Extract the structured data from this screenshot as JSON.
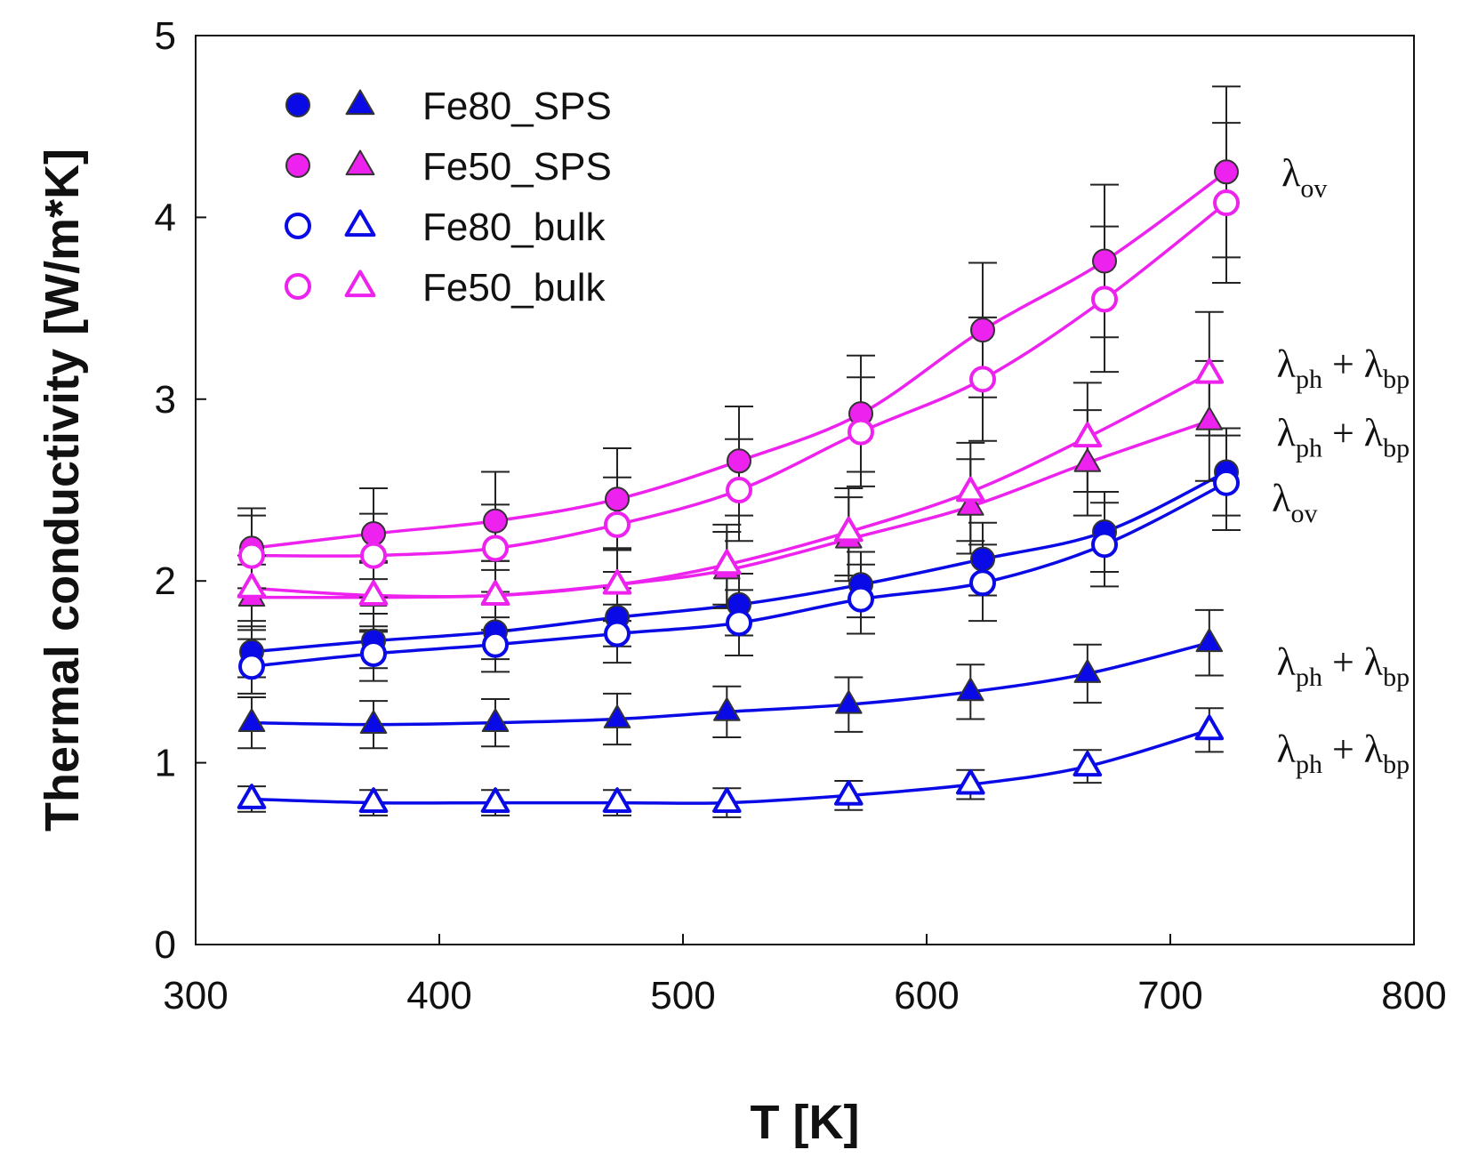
{
  "chart_data": {
    "type": "scatter",
    "title": "",
    "xlabel": "T [K]",
    "ylabel": "Thermal conductivity [W/m*K]",
    "xlim": [
      300,
      800
    ],
    "ylim": [
      0,
      5
    ],
    "x_ticks": [
      "300",
      "400",
      "500",
      "600",
      "700",
      "800"
    ],
    "y_ticks": [
      "0",
      "1",
      "2",
      "3",
      "4",
      "5"
    ],
    "grid": false,
    "legend_position": "top-left",
    "colors": {
      "blue": "#0a0ae6",
      "magenta": "#ee22ee",
      "errorbar": "#222222"
    },
    "legend": [
      {
        "label": "Fe80_SPS",
        "color": "#0a0ae6",
        "filled": true
      },
      {
        "label": "Fe50_SPS",
        "color": "#ee22ee",
        "filled": true
      },
      {
        "label": "Fe80_bulk",
        "color": "#0a0ae6",
        "filled": false
      },
      {
        "label": "Fe50_bulk",
        "color": "#ee22ee",
        "filled": false
      }
    ],
    "series": [
      {
        "name": "Fe80_SPS λov",
        "marker": "circle",
        "filled": true,
        "color": "#0a0ae6",
        "x": [
          323,
          373,
          423,
          473,
          523,
          573,
          623,
          673,
          723
        ],
        "y": [
          1.61,
          1.67,
          1.72,
          1.8,
          1.87,
          1.98,
          2.12,
          2.27,
          2.6
        ],
        "err": [
          0.14,
          0.15,
          0.15,
          0.16,
          0.17,
          0.18,
          0.2,
          0.22,
          0.24
        ]
      },
      {
        "name": "Fe80_SPS λph+λbp",
        "marker": "triangle",
        "filled": true,
        "color": "#0a0ae6",
        "x": [
          323,
          373,
          423,
          473,
          518,
          568,
          618,
          666,
          716
        ],
        "y": [
          1.22,
          1.21,
          1.22,
          1.24,
          1.28,
          1.32,
          1.39,
          1.49,
          1.66
        ],
        "err": [
          0.14,
          0.13,
          0.13,
          0.14,
          0.14,
          0.15,
          0.15,
          0.16,
          0.18
        ]
      },
      {
        "name": "Fe50_SPS λov",
        "marker": "circle",
        "filled": true,
        "color": "#ee22ee",
        "x": [
          323,
          373,
          423,
          473,
          523,
          573,
          623,
          673,
          723
        ],
        "y": [
          2.18,
          2.26,
          2.33,
          2.45,
          2.66,
          2.92,
          3.38,
          3.76,
          4.25
        ],
        "err": [
          0.22,
          0.25,
          0.27,
          0.28,
          0.3,
          0.32,
          0.37,
          0.42,
          0.47
        ]
      },
      {
        "name": "Fe50_SPS λph+λbp",
        "marker": "triangle",
        "filled": true,
        "color": "#ee22ee",
        "x": [
          323,
          373,
          423,
          473,
          518,
          568,
          618,
          666,
          716
        ],
        "y": [
          1.91,
          1.91,
          1.92,
          1.98,
          2.06,
          2.23,
          2.41,
          2.65,
          2.88
        ],
        "err": [
          0.18,
          0.19,
          0.19,
          0.2,
          0.21,
          0.23,
          0.26,
          0.29,
          0.33
        ]
      },
      {
        "name": "Fe80_bulk λov",
        "marker": "circle",
        "filled": false,
        "color": "#0a0ae6",
        "x": [
          323,
          373,
          423,
          473,
          523,
          573,
          623,
          673,
          723
        ],
        "y": [
          1.53,
          1.6,
          1.65,
          1.71,
          1.77,
          1.9,
          1.99,
          2.2,
          2.54
        ],
        "err": [
          0.15,
          0.15,
          0.15,
          0.16,
          0.18,
          0.19,
          0.21,
          0.23,
          0.26
        ]
      },
      {
        "name": "Fe80_bulk λph+λbp",
        "marker": "triangle",
        "filled": false,
        "color": "#0a0ae6",
        "x": [
          323,
          373,
          423,
          473,
          518,
          568,
          618,
          666,
          716
        ],
        "y": [
          0.8,
          0.78,
          0.78,
          0.78,
          0.78,
          0.82,
          0.88,
          0.98,
          1.18
        ],
        "err": [
          0.07,
          0.07,
          0.07,
          0.07,
          0.08,
          0.08,
          0.08,
          0.09,
          0.12
        ]
      },
      {
        "name": "Fe50_bulk λov",
        "marker": "circle",
        "filled": false,
        "color": "#ee22ee",
        "x": [
          323,
          373,
          423,
          473,
          523,
          573,
          623,
          673,
          723
        ],
        "y": [
          2.14,
          2.14,
          2.18,
          2.31,
          2.5,
          2.82,
          3.11,
          3.55,
          4.08
        ],
        "err": [
          0.22,
          0.23,
          0.24,
          0.26,
          0.28,
          0.3,
          0.34,
          0.4,
          0.44
        ]
      },
      {
        "name": "Fe50_bulk λph+λbp",
        "marker": "triangle",
        "filled": false,
        "color": "#ee22ee",
        "x": [
          323,
          373,
          423,
          473,
          518,
          568,
          618,
          666,
          716
        ],
        "y": [
          1.96,
          1.92,
          1.92,
          1.98,
          2.09,
          2.27,
          2.49,
          2.79,
          3.14
        ],
        "err": [
          0.18,
          0.19,
          0.19,
          0.2,
          0.22,
          0.24,
          0.27,
          0.3,
          0.34
        ]
      }
    ],
    "annotations": [
      {
        "base": "λ",
        "sub": "ov",
        "x": 742,
        "y": 4.25
      },
      {
        "base": "λ",
        "sub": "ph",
        "op": " + λ",
        "sub2": "bp",
        "x": 740,
        "y": 3.2
      },
      {
        "base": "λ",
        "sub": "ph",
        "op": " + λ",
        "sub2": "bp",
        "x": 740,
        "y": 2.82
      },
      {
        "base": "λ",
        "sub": "ov",
        "x": 738,
        "y": 2.46
      },
      {
        "base": "λ",
        "sub": "ph",
        "op": " + λ",
        "sub2": "bp",
        "x": 740,
        "y": 1.56
      },
      {
        "base": "λ",
        "sub": "ph",
        "op": " + λ",
        "sub2": "bp",
        "x": 740,
        "y": 1.08
      }
    ]
  }
}
